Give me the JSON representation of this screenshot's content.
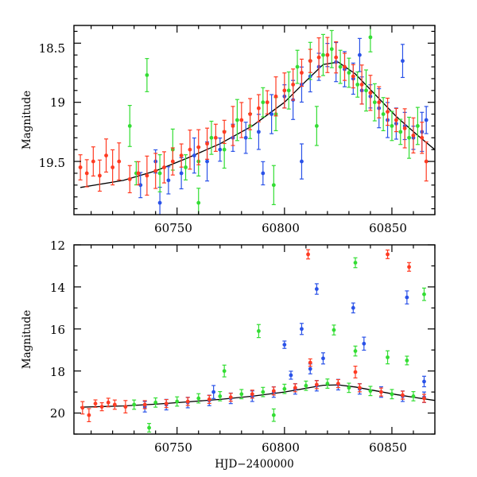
{
  "chart_data": [
    {
      "type": "scatter",
      "panel": "top",
      "title": "",
      "xlabel": "",
      "ylabel": "Magnitude",
      "xlim": [
        60702,
        60870
      ],
      "ylim": [
        19.95,
        18.35
      ],
      "y_inverted": true,
      "xticks": [
        60750,
        60800,
        60850
      ],
      "xtick_labels": [
        "60750",
        "60800",
        "60850"
      ],
      "yticks": [
        18.5,
        19,
        19.5
      ],
      "ytick_labels": [
        "18.5",
        "19",
        "19.5"
      ],
      "grid": false,
      "legend": "none",
      "model_curve": {
        "color": "#000000",
        "x": [
          60705,
          60725,
          60740,
          60755,
          60770,
          60785,
          60800,
          60810,
          60818,
          60825,
          60833,
          60842,
          60852,
          60862,
          60870
        ],
        "y": [
          19.72,
          19.66,
          19.58,
          19.47,
          19.35,
          19.2,
          19.0,
          18.82,
          18.68,
          18.66,
          18.76,
          18.93,
          19.12,
          19.28,
          19.4
        ]
      },
      "series": [
        {
          "color": "#2a52e8",
          "points": [
            [
              60733,
              19.7
            ],
            [
              60740,
              19.5
            ],
            [
              60746,
              19.66
            ],
            [
              60752,
              19.6
            ],
            [
              60758,
              19.45
            ],
            [
              60764,
              19.5
            ],
            [
              60770,
              19.4
            ],
            [
              60776,
              19.3
            ],
            [
              60782,
              19.3
            ],
            [
              60788,
              19.25
            ],
            [
              60794,
              19.1
            ],
            [
              60800,
              18.95
            ],
            [
              60804,
              18.98
            ],
            [
              60808,
              18.85
            ],
            [
              60812,
              18.78
            ],
            [
              60816,
              18.7
            ],
            [
              60820,
              18.6
            ],
            [
              60824,
              18.66
            ],
            [
              60828,
              18.72
            ],
            [
              60832,
              18.8
            ],
            [
              60836,
              18.9
            ],
            [
              60840,
              18.95
            ],
            [
              60844,
              19.05
            ],
            [
              60848,
              19.15
            ],
            [
              60852,
              19.18
            ],
            [
              60856,
              19.2
            ],
            [
              60860,
              19.3
            ],
            [
              60864,
              19.25
            ],
            [
              60866,
              19.15
            ],
            [
              60742,
              19.85
            ],
            [
              60790,
              19.6
            ],
            [
              60808,
              19.5
            ],
            [
              60855,
              18.65
            ],
            [
              60835,
              18.6
            ]
          ]
        },
        {
          "color": "#33dd33",
          "points": [
            [
              60728,
              19.2
            ],
            [
              60731,
              19.6
            ],
            [
              60736,
              18.77
            ],
            [
              60742,
              19.6
            ],
            [
              60748,
              19.4
            ],
            [
              60754,
              19.55
            ],
            [
              60760,
              19.5
            ],
            [
              60766,
              19.3
            ],
            [
              60772,
              19.4
            ],
            [
              60778,
              19.15
            ],
            [
              60784,
              19.2
            ],
            [
              60790,
              19.0
            ],
            [
              60796,
              19.1
            ],
            [
              60802,
              18.9
            ],
            [
              60806,
              18.7
            ],
            [
              60812,
              18.65
            ],
            [
              60818,
              18.6
            ],
            [
              60822,
              18.55
            ],
            [
              60826,
              18.7
            ],
            [
              60830,
              18.75
            ],
            [
              60834,
              18.85
            ],
            [
              60838,
              18.9
            ],
            [
              60842,
              19.0
            ],
            [
              60846,
              19.1
            ],
            [
              60850,
              19.2
            ],
            [
              60854,
              19.25
            ],
            [
              60858,
              19.3
            ],
            [
              60862,
              19.2
            ],
            [
              60760,
              19.85
            ],
            [
              60795,
              19.7
            ],
            [
              60815,
              19.2
            ],
            [
              60840,
              18.45
            ]
          ]
        },
        {
          "color": "#ff3b22",
          "points": [
            [
              60705,
              19.55
            ],
            [
              60708,
              19.6
            ],
            [
              60711,
              19.5
            ],
            [
              60714,
              19.62
            ],
            [
              60717,
              19.45
            ],
            [
              60720,
              19.55
            ],
            [
              60723,
              19.5
            ],
            [
              60728,
              19.65
            ],
            [
              60732,
              19.6
            ],
            [
              60736,
              19.62
            ],
            [
              60740,
              19.58
            ],
            [
              60744,
              19.55
            ],
            [
              60748,
              19.5
            ],
            [
              60752,
              19.45
            ],
            [
              60756,
              19.4
            ],
            [
              60760,
              19.38
            ],
            [
              60764,
              19.35
            ],
            [
              60768,
              19.3
            ],
            [
              60772,
              19.25
            ],
            [
              60776,
              19.2
            ],
            [
              60780,
              19.15
            ],
            [
              60784,
              19.1
            ],
            [
              60788,
              19.05
            ],
            [
              60792,
              19.0
            ],
            [
              60796,
              18.95
            ],
            [
              60800,
              18.9
            ],
            [
              60804,
              18.85
            ],
            [
              60808,
              18.75
            ],
            [
              60812,
              18.65
            ],
            [
              60816,
              18.62
            ],
            [
              60820,
              18.6
            ],
            [
              60824,
              18.62
            ],
            [
              60828,
              18.7
            ],
            [
              60832,
              18.78
            ],
            [
              60836,
              18.85
            ],
            [
              60840,
              18.92
            ],
            [
              60844,
              19.0
            ],
            [
              60848,
              19.08
            ],
            [
              60852,
              19.15
            ],
            [
              60856,
              19.22
            ],
            [
              60860,
              19.28
            ],
            [
              60864,
              19.3
            ],
            [
              60866,
              19.5
            ]
          ]
        }
      ]
    },
    {
      "type": "scatter",
      "panel": "bottom",
      "title": "",
      "xlabel": "HJD−2400000",
      "ylabel": "Magnitude",
      "xlim": [
        60702,
        60870
      ],
      "ylim": [
        21,
        12
      ],
      "y_inverted": true,
      "xticks": [
        60750,
        60800,
        60850
      ],
      "xtick_labels": [
        "60750",
        "60800",
        "60850"
      ],
      "yticks": [
        12,
        14,
        16,
        18,
        20
      ],
      "ytick_labels": [
        "12",
        "14",
        "16",
        "18",
        "20"
      ],
      "grid": false,
      "legend": "none",
      "model_curve": {
        "color": "#000000",
        "x": [
          60705,
          60725,
          60740,
          60755,
          60770,
          60785,
          60800,
          60810,
          60818,
          60825,
          60833,
          60842,
          60852,
          60862,
          60870
        ],
        "y": [
          19.72,
          19.66,
          19.58,
          19.47,
          19.35,
          19.2,
          19.0,
          18.82,
          18.68,
          18.66,
          18.76,
          18.93,
          19.12,
          19.28,
          19.4
        ]
      },
      "series": [
        {
          "color": "#2a52e8",
          "points": [
            [
              60735,
              19.7
            ],
            [
              60745,
              19.6
            ],
            [
              60755,
              19.5
            ],
            [
              60765,
              19.4
            ],
            [
              60775,
              19.3
            ],
            [
              60785,
              19.2
            ],
            [
              60795,
              19.0
            ],
            [
              60805,
              18.85
            ],
            [
              60815,
              18.7
            ],
            [
              60825,
              18.65
            ],
            [
              60835,
              18.85
            ],
            [
              60845,
              19.0
            ],
            [
              60855,
              19.2
            ],
            [
              60865,
              19.25
            ],
            [
              60800,
              16.75
            ],
            [
              60808,
              16.0
            ],
            [
              60815,
              14.1
            ],
            [
              60832,
              15.0
            ],
            [
              60837,
              16.7
            ],
            [
              60857,
              14.5
            ],
            [
              60803,
              18.2
            ],
            [
              60812,
              17.9
            ],
            [
              60818,
              17.4
            ],
            [
              60767,
              19.0
            ],
            [
              60865,
              18.5
            ]
          ]
        },
        {
          "color": "#33dd33",
          "points": [
            [
              60730,
              19.6
            ],
            [
              60740,
              19.5
            ],
            [
              60750,
              19.45
            ],
            [
              60760,
              19.3
            ],
            [
              60770,
              19.2
            ],
            [
              60780,
              19.1
            ],
            [
              60790,
              19.0
            ],
            [
              60800,
              18.85
            ],
            [
              60810,
              18.7
            ],
            [
              60820,
              18.6
            ],
            [
              60830,
              18.8
            ],
            [
              60840,
              18.95
            ],
            [
              60850,
              19.1
            ],
            [
              60860,
              19.2
            ],
            [
              60788,
              16.1
            ],
            [
              60823,
              16.05
            ],
            [
              60833,
              17.05
            ],
            [
              60833,
              12.85
            ],
            [
              60865,
              14.35
            ],
            [
              60772,
              18.0
            ],
            [
              60848,
              17.35
            ],
            [
              60857,
              17.5
            ],
            [
              60737,
              20.7
            ],
            [
              60795,
              20.1
            ]
          ]
        },
        {
          "color": "#ff3b22",
          "points": [
            [
              60706,
              19.75
            ],
            [
              60709,
              20.1
            ],
            [
              60712,
              19.55
            ],
            [
              60715,
              19.7
            ],
            [
              60718,
              19.5
            ],
            [
              60721,
              19.6
            ],
            [
              60726,
              19.7
            ],
            [
              60735,
              19.6
            ],
            [
              60745,
              19.55
            ],
            [
              60755,
              19.45
            ],
            [
              60765,
              19.35
            ],
            [
              60775,
              19.25
            ],
            [
              60785,
              19.1
            ],
            [
              60795,
              18.95
            ],
            [
              60805,
              18.8
            ],
            [
              60815,
              18.65
            ],
            [
              60825,
              18.6
            ],
            [
              60835,
              18.8
            ],
            [
              60845,
              19.0
            ],
            [
              60855,
              19.15
            ],
            [
              60865,
              19.3
            ],
            [
              60811,
              12.45
            ],
            [
              60848,
              12.45
            ],
            [
              60858,
              13.05
            ],
            [
              60812,
              17.6
            ],
            [
              60833,
              18.05
            ]
          ]
        }
      ]
    }
  ]
}
